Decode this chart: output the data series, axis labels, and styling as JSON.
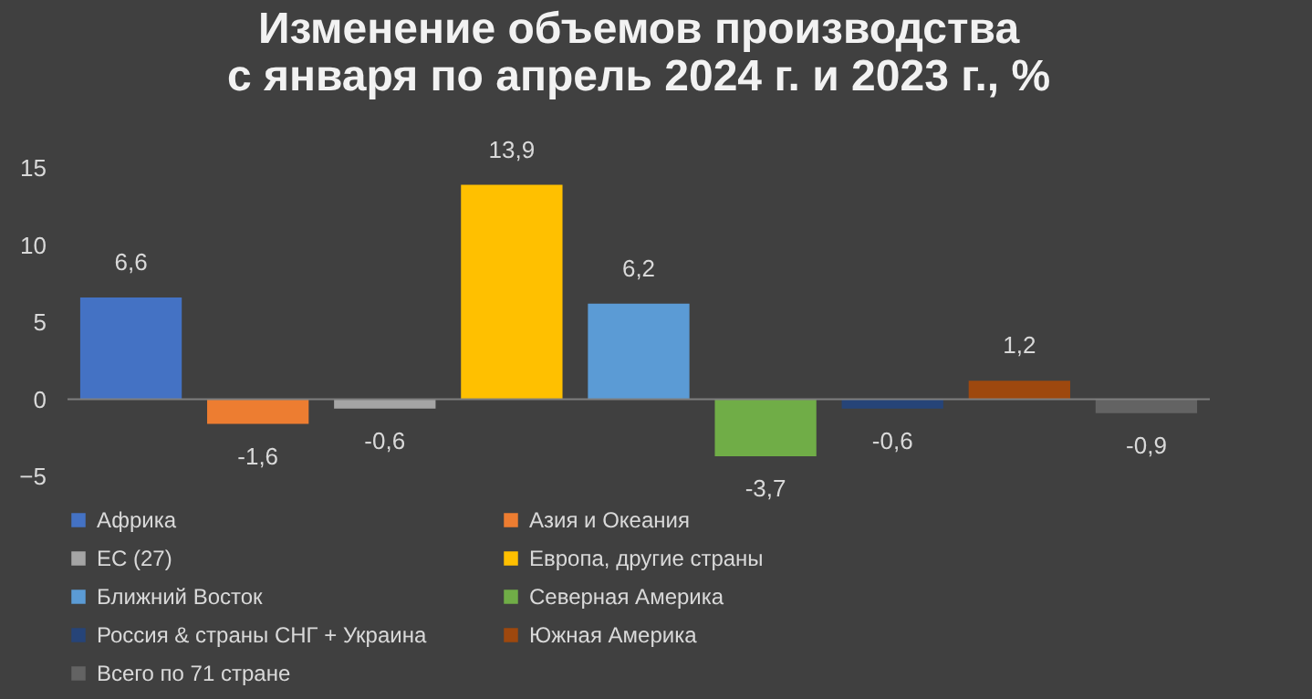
{
  "chart_data": {
    "type": "bar",
    "title": "Изменение объемов производства\nс января по апрель 2024 г. и 2023 г., %",
    "categories": [
      null
    ],
    "series": [
      {
        "name": "Африка",
        "color": "#4472c4",
        "values": [
          6.6
        ],
        "value_labels": [
          "6,6"
        ]
      },
      {
        "name": "Азия и Океания",
        "color": "#ed7d31",
        "values": [
          -1.6
        ],
        "value_labels": [
          "-1,6"
        ]
      },
      {
        "name": "ЕС (27)",
        "color": "#a5a5a5",
        "values": [
          -0.6
        ],
        "value_labels": [
          "-0,6"
        ]
      },
      {
        "name": "Европа, другие страны",
        "color": "#ffc000",
        "values": [
          13.9
        ],
        "value_labels": [
          "13,9"
        ]
      },
      {
        "name": "Ближний Восток",
        "color": "#5b9bd5",
        "values": [
          6.2
        ],
        "value_labels": [
          "6,2"
        ]
      },
      {
        "name": "Северная Америка",
        "color": "#70ad47",
        "values": [
          -3.7
        ],
        "value_labels": [
          "-3,7"
        ]
      },
      {
        "name": "Россия & страны СНГ + Украина",
        "color": "#264478",
        "values": [
          -0.6
        ],
        "value_labels": [
          "-0,6"
        ]
      },
      {
        "name": "Южная Америка",
        "color": "#9e480e",
        "values": [
          1.2
        ],
        "value_labels": [
          "1,2"
        ]
      },
      {
        "name": "Всего по 71 стране",
        "color": "#636363",
        "values": [
          -0.9
        ],
        "value_labels": [
          "-0,9"
        ]
      }
    ],
    "ylim": [
      -5,
      15
    ],
    "yticks": [
      -5,
      0,
      5,
      10,
      15
    ],
    "legend": "bottom"
  }
}
